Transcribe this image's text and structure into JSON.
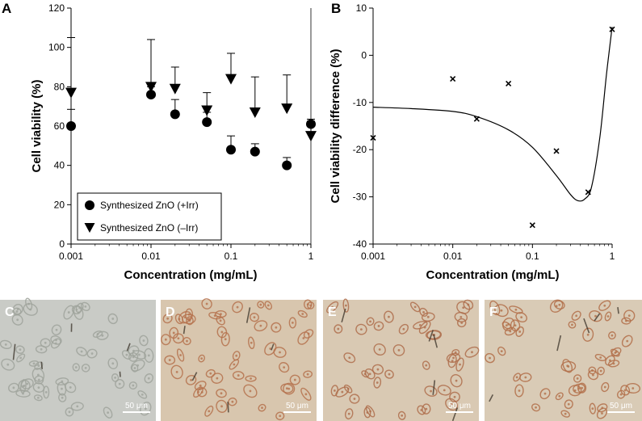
{
  "panel_labels": [
    "A",
    "B",
    "C",
    "D",
    "E",
    "F"
  ],
  "chart_data": [
    {
      "type": "scatter",
      "panel": "A",
      "xscale": "log",
      "xlim": [
        0.001,
        1
      ],
      "ylim": [
        0,
        120
      ],
      "xticks": [
        "0.001",
        "0.01",
        "0.1",
        "1"
      ],
      "yticks": [
        "0",
        "20",
        "40",
        "60",
        "80",
        "100",
        "120"
      ],
      "xlabel": "Concentration (mg/mL)",
      "ylabel": "Cell viability (%)",
      "legend_position": "bottom-left",
      "series": [
        {
          "name": "Synthesized ZnO (+Irr)",
          "marker": "circle",
          "x": [
            0.001,
            0.01,
            0.02,
            0.05,
            0.1,
            0.2,
            0.5,
            1
          ],
          "y": [
            60,
            76,
            66,
            62,
            48,
            47,
            40,
            61
          ],
          "err_upper": [
            8.5,
            4,
            7.5,
            5,
            7,
            4,
            4,
            2.5
          ]
        },
        {
          "name": "Synthesized ZnO (–Irr)",
          "marker": "triangle-down",
          "x": [
            0.001,
            0.01,
            0.02,
            0.05,
            0.1,
            0.2,
            0.5,
            1
          ],
          "y": [
            77,
            80,
            79,
            68,
            84,
            67,
            69,
            55
          ],
          "err_upper": [
            28,
            24,
            11,
            9,
            13,
            18,
            17,
            7.5
          ]
        }
      ]
    },
    {
      "type": "scatter",
      "panel": "B",
      "xscale": "log",
      "xlim": [
        0.001,
        1
      ],
      "ylim": [
        -40,
        10
      ],
      "xticks": [
        "0.001",
        "0.01",
        "0.1",
        "1"
      ],
      "yticks": [
        "-40",
        "-30",
        "-20",
        "-10",
        "0",
        "10"
      ],
      "xlabel": "Concentration (mg/mL)",
      "ylabel": "Cell viability difference (%)",
      "series": [
        {
          "name": "difference",
          "marker": "x",
          "x": [
            0.001,
            0.01,
            0.02,
            0.05,
            0.1,
            0.2,
            0.5,
            1
          ],
          "y": [
            -17.5,
            -5,
            -13.5,
            -6,
            -36,
            -20.3,
            -29,
            5.5
          ]
        }
      ],
      "fit_curve": {
        "x": [
          0.001,
          0.003,
          0.01,
          0.02,
          0.05,
          0.1,
          0.2,
          0.3,
          0.37,
          0.45,
          0.55,
          0.7,
          0.85,
          1
        ],
        "y": [
          -11,
          -11.3,
          -11.9,
          -13,
          -15.8,
          -19.5,
          -25.5,
          -29.5,
          -30.8,
          -30.5,
          -28,
          -17.5,
          -4,
          6
        ]
      }
    }
  ],
  "micrographs": [
    {
      "label": "C",
      "scale_bar": "50 μm",
      "base": "#c9cbc6",
      "cells": "#9fa39b",
      "cell_count": 60
    },
    {
      "label": "D",
      "scale_bar": "50 μm",
      "base": "#d8c6ae",
      "cells": "#b5714c",
      "cell_count": 58
    },
    {
      "label": "E",
      "scale_bar": "50 μm",
      "base": "#d9c9b3",
      "cells": "#ae6d4b",
      "cell_count": 48
    },
    {
      "label": "F",
      "scale_bar": "50 μm",
      "base": "#d9cbb6",
      "cells": "#b16f49",
      "cell_count": 52
    }
  ]
}
